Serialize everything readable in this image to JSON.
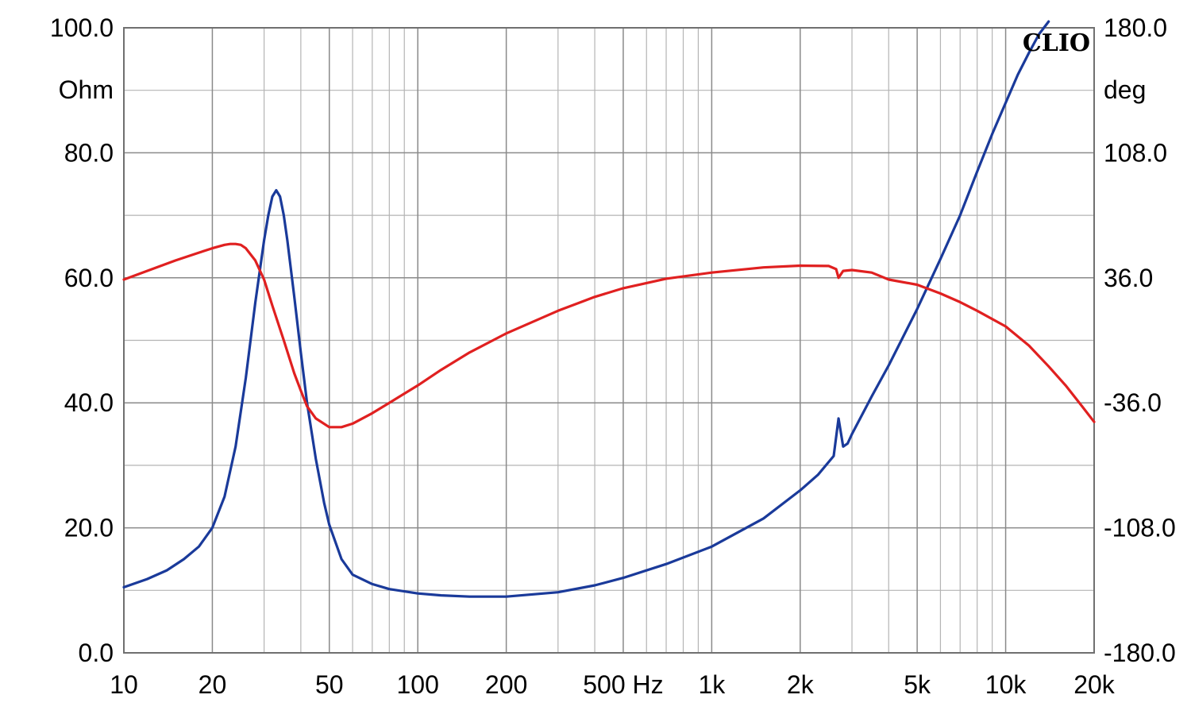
{
  "chart_data": {
    "type": "line",
    "brand": "CLIO",
    "x_scale": "log",
    "xlim": [
      10,
      20000
    ],
    "x_tick_values": [
      10,
      20,
      50,
      100,
      200,
      500,
      1000,
      2000,
      5000,
      10000,
      20000
    ],
    "x_tick_labels": [
      "10",
      "20",
      "50",
      "100",
      "200",
      "500 Hz",
      "1k",
      "2k",
      "5k",
      "10k",
      "20k"
    ],
    "y_left": {
      "unit": "Ohm",
      "lim": [
        0,
        100
      ],
      "tick_values": [
        0,
        20,
        40,
        60,
        80,
        100
      ],
      "tick_labels": [
        "0.0",
        "20.0",
        "40.0",
        "60.0",
        "80.0",
        "100.0"
      ]
    },
    "y_right": {
      "unit": "deg",
      "lim": [
        -180,
        180
      ],
      "tick_values": [
        -180,
        -108,
        -36,
        36,
        108,
        180
      ],
      "tick_labels": [
        "-180.0",
        "-108.0",
        "-36.0",
        "36.0",
        "108.0",
        "180.0"
      ]
    },
    "grid": true,
    "series": [
      {
        "axis": "left",
        "color": "#1a3a9a",
        "x": [
          10,
          12,
          14,
          16,
          18,
          20,
          22,
          24,
          26,
          28,
          30,
          31,
          32,
          33,
          34,
          35,
          36,
          38,
          40,
          42,
          45,
          48,
          50,
          55,
          60,
          70,
          80,
          100,
          120,
          150,
          200,
          300,
          400,
          500,
          700,
          1000,
          1500,
          2000,
          2300,
          2600,
          2700,
          2800,
          2900,
          3000,
          3500,
          4000,
          5000,
          6000,
          7000,
          8000,
          9000,
          10000,
          11000,
          12000,
          13000,
          14000
        ],
        "y": [
          10.5,
          11.8,
          13.2,
          15,
          17,
          20,
          25,
          33,
          44,
          56,
          66,
          70,
          73,
          74,
          73,
          70,
          66,
          57,
          48,
          40,
          31,
          24,
          20.5,
          15,
          12.5,
          11,
          10.2,
          9.5,
          9.2,
          9.0,
          9.0,
          9.7,
          10.8,
          12,
          14.2,
          17,
          21.5,
          26,
          28.5,
          31.5,
          37.5,
          33,
          33.5,
          35,
          41,
          46,
          55,
          63,
          70,
          77,
          83,
          88,
          92.5,
          96,
          99,
          101
        ]
      },
      {
        "axis": "right",
        "color": "#e02020",
        "x": [
          10,
          12,
          15,
          18,
          20,
          22,
          23,
          24,
          25,
          26,
          28,
          30,
          32,
          35,
          38,
          40,
          42,
          45,
          50,
          55,
          60,
          70,
          80,
          100,
          120,
          150,
          200,
          300,
          400,
          500,
          700,
          1000,
          1500,
          2000,
          2500,
          2650,
          2700,
          2750,
          2800,
          3000,
          3500,
          4000,
          5000,
          6000,
          7000,
          8000,
          10000,
          12000,
          14000,
          16000,
          18000,
          20000
        ],
        "y": [
          35,
          40,
          46,
          50.5,
          53,
          55,
          55.5,
          55.5,
          55,
          53,
          46,
          35,
          20,
          0,
          -19,
          -29,
          -38,
          -45,
          -50,
          -50,
          -48,
          -42,
          -36,
          -26,
          -17,
          -7,
          4,
          17,
          25,
          30,
          35.5,
          39,
          42,
          43,
          42.8,
          41,
          36,
          38,
          40,
          40.5,
          39,
          35,
          32,
          27,
          22,
          17,
          8,
          -3,
          -15,
          -26,
          -37,
          -47
        ]
      }
    ]
  }
}
